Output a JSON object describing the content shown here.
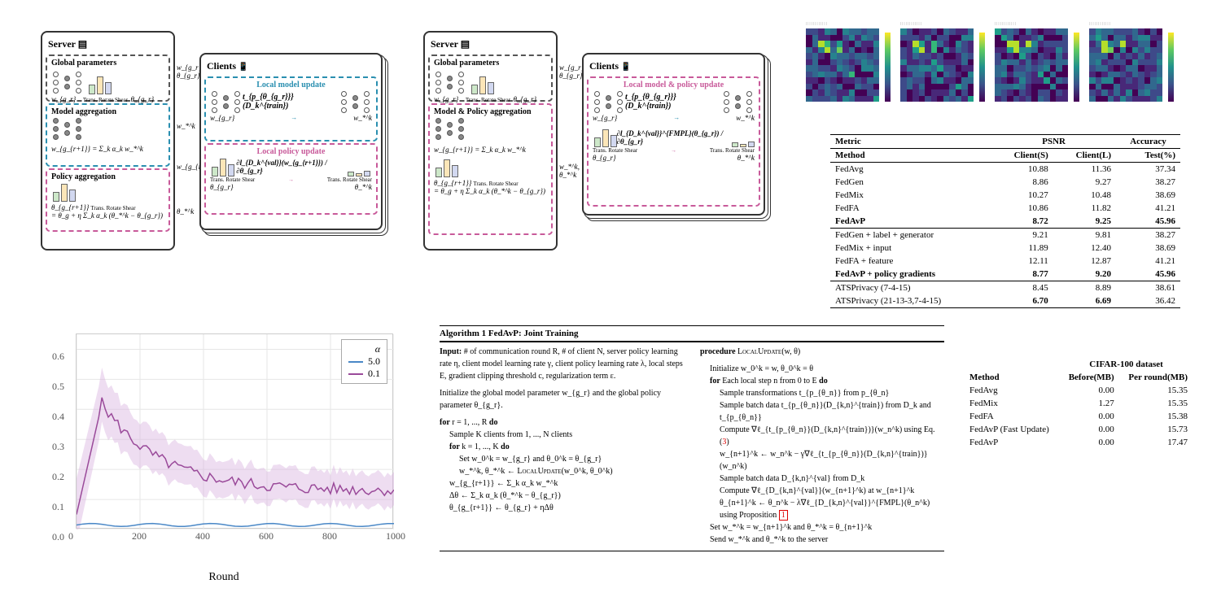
{
  "arch": {
    "server_label": "Server",
    "clients_label": "Clients",
    "global_params": "Global parameters",
    "model_agg": "Model aggregation",
    "policy_agg": "Policy aggregation",
    "model_policy_agg": "Model & Policy aggregation",
    "local_model_update": "Local model update",
    "local_policy_update": "Local policy update",
    "local_joint_update": "Local model & policy update",
    "trans_ops": "Trans. Rotate Shear",
    "wg": "w_{g_r}",
    "thetag": "θ_{g_r}",
    "wg_next": "w_{g_{r+1}} = Σ_k α_k w_*^k",
    "thetag_next": "θ_{g_{r+1}} Trans. Rotate Shear",
    "theta_update": "= θ_g + η Σ_k α_k (θ_*^k − θ_{g_r})",
    "arrow_wgr": "w_{g_r},",
    "arrow_thetagr": "θ_{g_r}",
    "arrow_wstar": "w_*^k",
    "arrow_wgrplus1": "w_{g_{r+1}}",
    "arrow_thetastar": "θ_*^k",
    "arrow_wstar_thetastar": "w_*^k, θ_*^k",
    "train_expr": "t_{p_{θ_{g_r}}}(D_k^{train})",
    "grad_val": "∂l_{D_k^{val}}(w_{g_{r+1}}) / ∂θ_{g_r}",
    "grad_fmpl": "∂l_{D_k^{val}}^{FMPL}(θ_{g_r}) / ∂θ_{g_r}",
    "wstar_lbl": "w_*^k",
    "theta_star_lbl": "θ_*^k",
    "colors": {
      "blue": "#2a8fb0",
      "pink": "#c85a9a"
    }
  },
  "heatmap": {
    "n_panels": 4,
    "palette_note": "viridis"
  },
  "psnr": {
    "metric_label": "Metric",
    "method_label": "Method",
    "psnr_label": "PSNR",
    "acc_label": "Accuracy",
    "client_s": "Client(S)",
    "client_l": "Client(L)",
    "test_pct": "Test(%)",
    "rows_g1": [
      {
        "m": "FedAvg",
        "s": "10.88",
        "l": "11.36",
        "t": "37.34"
      },
      {
        "m": "FedGen",
        "s": "8.86",
        "l": "9.27",
        "t": "38.27"
      },
      {
        "m": "FedMix",
        "s": "10.27",
        "l": "10.48",
        "t": "38.69"
      },
      {
        "m": "FedFA",
        "s": "10.86",
        "l": "11.82",
        "t": "41.21"
      },
      {
        "m": "FedAvP",
        "s": "8.72",
        "l": "9.25",
        "t": "45.96",
        "bold": true,
        "bold_t": true
      }
    ],
    "rows_g2": [
      {
        "m": "FedGen + label + generator",
        "s": "9.21",
        "l": "9.81",
        "t": "38.27"
      },
      {
        "m": "FedMix + input",
        "s": "11.89",
        "l": "12.40",
        "t": "38.69"
      },
      {
        "m": "FedFA + feature",
        "s": "12.11",
        "l": "12.87",
        "t": "41.21"
      },
      {
        "m": "FedAvP + policy gradients",
        "s": "8.77",
        "l": "9.20",
        "t": "45.96",
        "bold": true,
        "bold_t": true
      }
    ],
    "rows_g3": [
      {
        "m": "ATSPrivacy (7-4-15)",
        "s": "8.45",
        "l": "8.89",
        "t": "38.61"
      },
      {
        "m": "ATSPrivacy (21-13-3,7-4-15)",
        "s": "6.70",
        "l": "6.69",
        "t": "36.42",
        "bold_s": true,
        "bold_l": true
      }
    ]
  },
  "conv": {
    "type": "line",
    "xlabel": "Round",
    "xlim": [
      0,
      1000
    ],
    "xtick_step": 200,
    "ylim": [
      0.0,
      0.65
    ],
    "yticks": [
      0.0,
      0.1,
      0.2,
      0.3,
      0.4,
      0.5,
      0.6
    ],
    "legend_title": "α",
    "series": [
      {
        "name": "5.0",
        "color": "#4a88c7",
        "approx_y": 0.02
      },
      {
        "name": "0.1",
        "color": "#9a4a9a",
        "approx_y_peak": 0.42,
        "approx_y_settle": 0.13
      }
    ],
    "band_color": "#d9b3e0",
    "grid_color": "#e6e6e6",
    "background": "#ffffff",
    "label_fontsize": 14,
    "tick_fontsize": 12
  },
  "algo": {
    "title": "Algorithm 1 FedAvP: Joint Training",
    "left": [
      "Input: # of communication round R, # of client N, server policy learning rate η, client model learning rate γ, client policy learning rate λ, local steps E, gradient clipping threshold c, regularization term ε.",
      "Initialize the global model parameter w_{g_r} and the global policy parameter θ_{g_r}.",
      "for r = 1, ..., R do",
      "  Sample K clients from 1, ..., N clients",
      "  for k = 1, ..., K do",
      "    Set w_0^k = w_{g_r} and θ_0^k = θ_{g_r}",
      "    w_*^k, θ_*^k ← LOCALUPDATE(w_0^k, θ_0^k)",
      "  w_{g_{r+1}} ← Σ_k α_k w_*^k",
      "  Δθ ← Σ_k α_k (θ_*^k − θ_{g_r})",
      "  θ_{g_{r+1}} ← θ_{g_r} + ηΔθ"
    ],
    "right": [
      "procedure LOCALUPDATE(w, θ)",
      "  Initialize w_0^k = w, θ_0^k = θ",
      "  for Each local step n from 0 to E do",
      "    Sample transformations t_{p_{θ_n}} from p_{θ_n}",
      "    Sample batch data t_{p_{θ_n}}(D_{k,n}^{train}) from D_k and t_{p_{θ_n}}",
      "    Compute ∇ℓ_{t_{p_{θ_n}}(D_{k,n}^{train})}(w_n^k) using Eq.(3)",
      "    w_{n+1}^k ← w_n^k − γ∇ℓ_{t_{p_{θ_n}}(D_{k,n}^{train})}(w_n^k)",
      "    Sample batch data D_{k,n}^{val} from D_k",
      "    Compute ∇ℓ_{D_{k,n}^{val}}(w_{n+1}^k) at w_{n+1}^k",
      "    θ_{n+1}^k ← θ_n^k − λ∇ℓ_{D_{k,n}^{val}}^{FMPL}(θ_n^k) using Proposition 1",
      "  Set w_*^k = w_{n+1}^k and θ_*^k = θ_{n+1}^k",
      "  Send w_*^k and θ_*^k to the server"
    ]
  },
  "mem": {
    "method_label": "Method",
    "dataset_label": "CIFAR-100 dataset",
    "before": "Before(MB)",
    "per_round": "Per round(MB)",
    "rows_g1": [
      {
        "m": "FedAvg",
        "b": "0.00",
        "r": "15.35"
      },
      {
        "m": "FedMix",
        "b": "1.27",
        "r": "15.35"
      },
      {
        "m": "FedFA",
        "b": "0.00",
        "r": "15.38"
      }
    ],
    "rows_g2": [
      {
        "m": "FedAvP (Fast Update)",
        "b": "0.00",
        "r": "15.73"
      },
      {
        "m": "FedAvP",
        "b": "0.00",
        "r": "17.47"
      }
    ]
  }
}
